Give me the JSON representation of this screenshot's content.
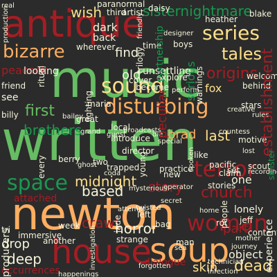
{
  "background": "#2b2b2b",
  "palette": [
    "#a51d24",
    "#fdae61",
    "#fee08b",
    "#66bd63",
    "#1a9850",
    "#d9ef8b",
    "#f5f5dc"
  ],
  "words": {
    "music": "music",
    "written": "written",
    "newton": "newton",
    "antique": "antique",
    "house": "house",
    "soup": "soup",
    "disturbing": "disturbing",
    "bizarre": "bizarre",
    "sound": "sound",
    "series": "series",
    "sisternightmare": "sisternightmare",
    "space": "space",
    "woman": "woman",
    "terror": "terror",
    "church": "church",
    "tales": "tales",
    "origins": "origins",
    "brothers": "brothers",
    "first": "first",
    "midnight": "midnight",
    "based": "based",
    "story": "story",
    "crawl": "crawl",
    "horror": "horror",
    "drop": "drop",
    "deep": "deep",
    "occurrences": "occurrences",
    "dialogue": "dialogue",
    "skin": "skin",
    "dead": "dead",
    "establishment": "establishment",
    "peacock": "peacock",
    "fox": "fox",
    "last": "last",
    "wish": "wish",
    "dark": "dark",
    "back": "back",
    "find": "find",
    "old": "old",
    "looking": "looking",
    "object": "object",
    "part": "part",
    "one": "one",
    "stories": "stories",
    "attached": "attached",
    "brad": "brad",
    "peculiar": "peculiar",
    "lonely": "lonely",
    "friend": "friend",
    "see": "see",
    "daisy": "daisy",
    "third": "third",
    "paranormal": "paranormal",
    "artist": "artist",
    "heather": "heather",
    "blake": "blake",
    "wherever": "wherever",
    "unsettling": "unsettling",
    "boys": "boys",
    "stars": "stars",
    "welcome": "welcome",
    "behind": "behind",
    "motive": "motive",
    "pacific": "pacific",
    "two": "two",
    "week": "week",
    "immersive": "immersive",
    "producers": "producers",
    "jeff": "jeff",
    "roi": "roi",
    "content": "content",
    "experience": "experience",
    "strange": "strange",
    "another": "another",
    "jade": "jade",
    "maria": "maria",
    "local": "local",
    "become": "become",
    "partnership": "partnership",
    "serious": "serious",
    "warnings": "warnings",
    "explore": "explore",
    "ritual": "ritual",
    "cover": "cover",
    "time": "time",
    "trilogy": "trilogy",
    "lighting": "lighting",
    "great": "great",
    "director": "director",
    "introduce": "introduce",
    "young": "young",
    "trapped": "trapped",
    "berry": "berry",
    "every": "every",
    "tri": "tri",
    "left": "left",
    "bag": "bag",
    "man": "man",
    "scout": "scout",
    "billy": "billy",
    "set": "set",
    "like": "like",
    "practice": "practice",
    "claim": "claim",
    "home": "home",
    "people": "people",
    "new": "new",
    "spoken": "spoken",
    "perform": "perform",
    "creative": "creative",
    "rules": "rules",
    "designer": "designer",
    "countess": "countess",
    "friendly": "friendly",
    "technician": "technician",
    "journey": "journey",
    "real": "real",
    "production": "production",
    "happenings": "happenings",
    "sinister": "sinister",
    "mother": "mother",
    "guest": "guest",
    "special": "special",
    "broadcasts": "broadcasts",
    "sea": "sea",
    "twisted": "twisted",
    "investigation": "investigation",
    "infection": "infection",
    "ghost": "ghost",
    "coda": "coda",
    "die": "die",
    "bailey": "bailey",
    "grand": "grand",
    "forgotten": "forgotten",
    "secret": "secret",
    "mysterious": "mysterious",
    "operator": "operator",
    "lost": "lost",
    "recording": "recording",
    "attempt": "attempt"
  }
}
